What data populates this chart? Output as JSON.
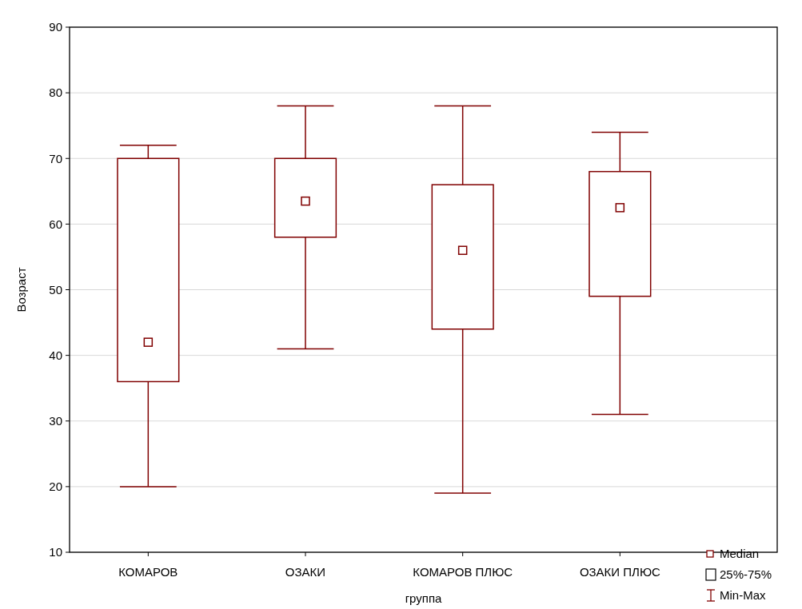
{
  "chart_data": {
    "type": "box",
    "xlabel": "группа",
    "ylabel": "Возраст",
    "categories": [
      "КОМАРОВ",
      "ОЗАКИ",
      "КОМАРОВ ПЛЮС",
      "ОЗАКИ ПЛЮС"
    ],
    "series": [
      {
        "color": "#800000",
        "boxes": [
          {
            "low": 20,
            "q1": 36,
            "median": 42,
            "q3": 70,
            "high": 72
          },
          {
            "low": 41,
            "q1": 58,
            "median": 63.5,
            "q3": 70,
            "high": 78
          },
          {
            "low": 19,
            "q1": 44,
            "median": 56,
            "q3": 66,
            "high": 78
          },
          {
            "low": 31,
            "q1": 49,
            "median": 62.5,
            "q3": 68,
            "high": 74
          }
        ]
      }
    ],
    "ylim": [
      10,
      90
    ],
    "yticks": [
      10,
      20,
      30,
      40,
      50,
      60,
      70,
      80,
      90
    ],
    "grid": "y",
    "marker": "square",
    "annotations": [
      "Median",
      "25%-75%",
      "Min-Max"
    ]
  }
}
